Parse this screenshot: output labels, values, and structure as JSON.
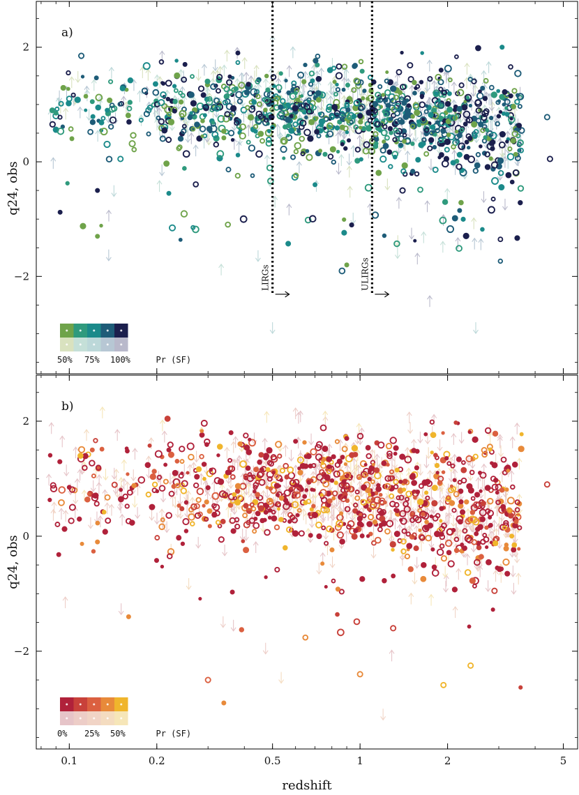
{
  "chart_data": [
    {
      "panel": "a)",
      "type": "scatter",
      "xlabel": "",
      "ylabel": "q24, obs",
      "xscale": "log",
      "xlim": [
        0.077,
        5.6
      ],
      "ylim": [
        -3.7,
        2.8
      ],
      "xticks": [
        "0.1",
        "0.2",
        "0.5",
        "1",
        "2",
        "5"
      ],
      "yticks": [
        "2",
        "0",
        "−2"
      ],
      "vlines": [
        {
          "x": 0.5,
          "label": "LIRGs"
        },
        {
          "x": 1.1,
          "label": "ULIRGs"
        }
      ],
      "key": {
        "labels": [
          "50%",
          "75%",
          "100%"
        ],
        "variable": "Pr (SF)",
        "colors": [
          "#6fa34a",
          "#2f9a7d",
          "#1b8a8a",
          "#1e5c78",
          "#1b1f4d"
        ],
        "faded_colors": [
          "#d9e2bf",
          "#c5e0d8",
          "#bcd8d9",
          "#b7c7d4",
          "#b9b9cb"
        ]
      },
      "markers": {
        "solid": "detection",
        "open": "detection",
        "arrow_up": "lower limit",
        "arrow_down": "upper limit"
      },
      "points_note": "~1600 sources; sample listed below",
      "points": [
        {
          "x": 0.09,
          "y": 0.85,
          "s": "solid",
          "c": 1
        },
        {
          "x": 0.093,
          "y": -0.88,
          "s": "solid",
          "c": 4
        },
        {
          "x": 0.1,
          "y": 1.1,
          "s": "open",
          "c": 2
        },
        {
          "x": 0.11,
          "y": 1.85,
          "s": "open",
          "c": 3
        },
        {
          "x": 0.12,
          "y": 1.05,
          "s": "solid",
          "c": 1
        },
        {
          "x": 0.125,
          "y": -0.5,
          "s": "solid",
          "c": 4
        },
        {
          "x": 0.125,
          "y": -1.3,
          "s": "solid",
          "c": 0
        },
        {
          "x": 0.135,
          "y": 0.9,
          "s": "solid",
          "c": 2
        },
        {
          "x": 0.15,
          "y": 0.05,
          "s": "open",
          "c": 2
        },
        {
          "x": 0.22,
          "y": -0.55,
          "s": "solid",
          "c": 2
        },
        {
          "x": 0.25,
          "y": 1.7,
          "s": "solid",
          "c": 4
        },
        {
          "x": 0.38,
          "y": 1.9,
          "s": "solid",
          "c": 4
        },
        {
          "x": 0.5,
          "y": 0.6,
          "s": "solid",
          "c": 2
        },
        {
          "x": 0.7,
          "y": -0.4,
          "s": "solid",
          "c": 2
        },
        {
          "x": 0.9,
          "y": -1.8,
          "s": "solid",
          "c": 0
        },
        {
          "x": 1.2,
          "y": 0.2,
          "s": "open",
          "c": 3
        },
        {
          "x": 1.4,
          "y": -0.5,
          "s": "open",
          "c": 4
        },
        {
          "x": 1.9,
          "y": 1.6,
          "s": "solid",
          "c": 4
        },
        {
          "x": 2.2,
          "y": -0.85,
          "s": "solid",
          "c": 3
        },
        {
          "x": 3.3,
          "y": 1.15,
          "s": "solid",
          "c": 4
        },
        {
          "x": 4.5,
          "y": 0.05,
          "s": "open",
          "c": 4
        },
        {
          "x": 4.4,
          "y": 0.78,
          "s": "open",
          "c": 3
        },
        {
          "x": 2.5,
          "y": -2.8,
          "s": "down",
          "c": 2
        },
        {
          "x": 0.5,
          "y": -2.8,
          "s": "down",
          "c": 2
        },
        {
          "x": 0.5,
          "y": 2.0,
          "s": "up",
          "c": 2
        }
      ]
    },
    {
      "panel": "b)",
      "type": "scatter",
      "xlabel": "redshift",
      "ylabel": "q24, obs",
      "xscale": "log",
      "xlim": [
        0.077,
        5.6
      ],
      "ylim": [
        -3.7,
        2.8
      ],
      "xticks": [
        "0.1",
        "0.2",
        "0.5",
        "1",
        "2",
        "5"
      ],
      "yticks": [
        "2",
        "0",
        "−2"
      ],
      "key": {
        "labels": [
          "0%",
          "25%",
          "50%"
        ],
        "variable": "Pr (SF)",
        "colors": [
          "#b0213a",
          "#c8413a",
          "#db6040",
          "#e88a3a",
          "#f0b52c"
        ],
        "faded_colors": [
          "#e6c4c8",
          "#edcdc7",
          "#f1d4c6",
          "#f4dcc0",
          "#f6e6b8"
        ]
      },
      "markers": {
        "solid": "detection",
        "open": "detection",
        "arrow_up": "lower limit",
        "arrow_down": "upper limit"
      },
      "points_note": "~1600 sources; sample listed below",
      "points": [
        {
          "x": 0.092,
          "y": -0.32,
          "s": "solid",
          "c": 0
        },
        {
          "x": 0.1,
          "y": 0.85,
          "s": "solid",
          "c": 0
        },
        {
          "x": 0.12,
          "y": 1.5,
          "s": "solid",
          "c": 2
        },
        {
          "x": 0.125,
          "y": -0.1,
          "s": "solid",
          "c": 3
        },
        {
          "x": 0.16,
          "y": -1.4,
          "s": "solid",
          "c": 3
        },
        {
          "x": 0.22,
          "y": 1.5,
          "s": "solid",
          "c": 0
        },
        {
          "x": 0.3,
          "y": -2.5,
          "s": "open",
          "c": 2
        },
        {
          "x": 0.34,
          "y": -2.9,
          "s": "solid",
          "c": 3
        },
        {
          "x": 0.36,
          "y": 1.8,
          "s": "solid",
          "c": 0
        },
        {
          "x": 0.6,
          "y": 1.65,
          "s": "solid",
          "c": 0
        },
        {
          "x": 0.9,
          "y": 1.7,
          "s": "solid",
          "c": 0
        },
        {
          "x": 1.0,
          "y": -2.4,
          "s": "open",
          "c": 3
        },
        {
          "x": 1.3,
          "y": -1.6,
          "s": "open",
          "c": 1
        },
        {
          "x": 2.4,
          "y": -2.25,
          "s": "open",
          "c": 4
        },
        {
          "x": 2.9,
          "y": -0.95,
          "s": "open",
          "c": 1
        },
        {
          "x": 4.4,
          "y": 0.9,
          "s": "open",
          "c": 1
        },
        {
          "x": 0.13,
          "y": 2.05,
          "s": "up",
          "c": 4
        },
        {
          "x": 1.2,
          "y": -3.0,
          "s": "down",
          "c": 2
        }
      ]
    }
  ]
}
